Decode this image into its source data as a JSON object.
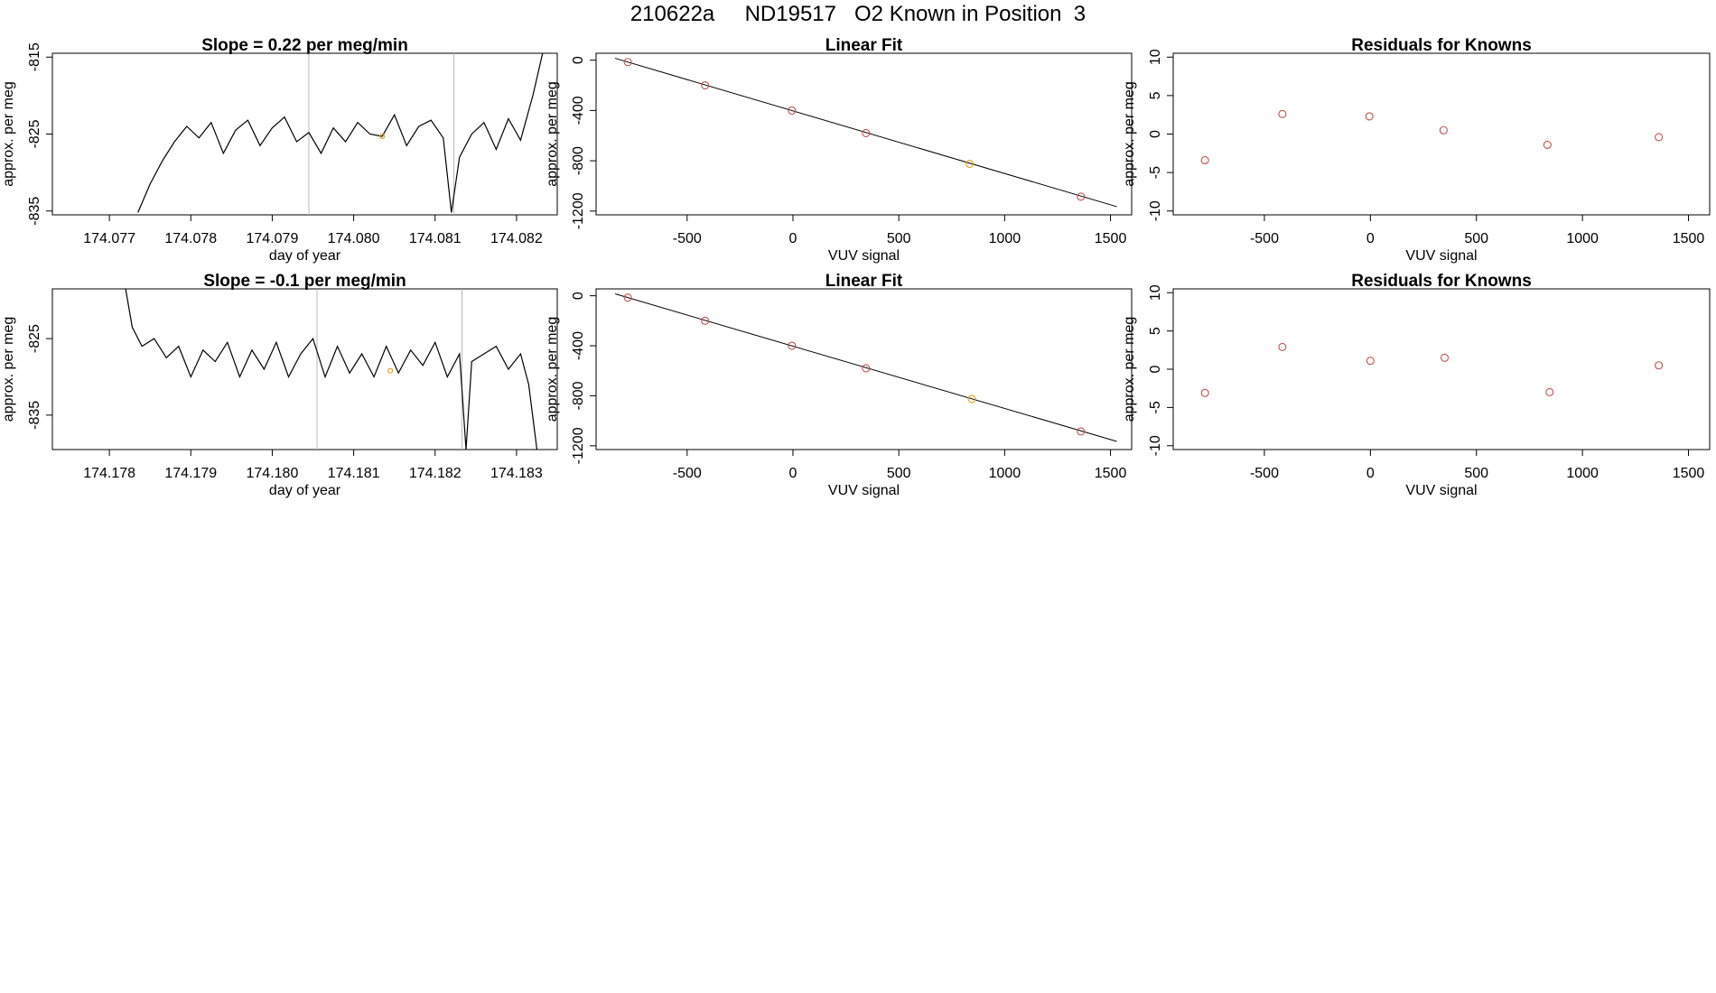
{
  "figure": {
    "title": "210622a     ND19517   O2 Known in Position  3"
  },
  "colors": {
    "line": "#000000",
    "known_point": "#c0504d",
    "highlight_point": "#e6a020",
    "vertical_rule": "#bbbbbb",
    "frame": "#000000"
  },
  "chart_data": [
    {
      "id": "time-series-1",
      "type": "line",
      "title": "Slope =  0.22  per meg/min",
      "xlabel": "day of year",
      "ylabel": "approx. per meg",
      "xlim": [
        174.0763,
        174.0825
      ],
      "ylim": [
        -835.5,
        -814.5
      ],
      "xticks": [
        174.077,
        174.078,
        174.079,
        174.08,
        174.081,
        174.082
      ],
      "xtick_labels": [
        "174.077",
        "174.078",
        "174.079",
        "174.080",
        "174.081",
        "174.082"
      ],
      "yticks": [
        -815,
        -825,
        -835
      ],
      "ytick_labels": [
        "-815",
        "-825",
        "-835"
      ],
      "vlines": [
        174.07945,
        174.08123
      ],
      "highlight": {
        "x": 174.08035,
        "y": -825.3
      },
      "x": [
        174.07735,
        174.0775,
        174.07765,
        174.0778,
        174.07795,
        174.0781,
        174.07825,
        174.0784,
        174.07855,
        174.0787,
        174.07885,
        174.079,
        174.07915,
        174.0793,
        174.07945,
        174.0796,
        174.07975,
        174.0799,
        174.08005,
        174.0802,
        174.08035,
        174.0805,
        174.08065,
        174.0808,
        174.08095,
        174.0811,
        174.0812,
        174.0813,
        174.08145,
        174.0816,
        174.08175,
        174.0819,
        174.08205,
        174.0822,
        174.08232
      ],
      "y": [
        -835.2,
        -831.5,
        -828.5,
        -826,
        -824,
        -825.5,
        -823.5,
        -827.5,
        -824.5,
        -823.2,
        -826.5,
        -824.2,
        -822.8,
        -826,
        -824.8,
        -827.5,
        -824.2,
        -826,
        -823.5,
        -825,
        -825.3,
        -822.5,
        -826.5,
        -824,
        -823.2,
        -825.5,
        -835.2,
        -828,
        -825,
        -823.5,
        -827,
        -823,
        -825.8,
        -820,
        -814.5
      ]
    },
    {
      "id": "linear-fit-1",
      "type": "scatter",
      "title": "Linear Fit",
      "xlabel": "VUV signal",
      "ylabel": "approx. per meg",
      "xlim": [
        -930,
        1600
      ],
      "ylim": [
        -1230,
        55
      ],
      "xticks": [
        -500,
        0,
        500,
        1000,
        1500
      ],
      "xtick_labels": [
        "-500",
        "0",
        "500",
        "1000",
        "1500"
      ],
      "yticks": [
        0,
        -400,
        -800,
        -1200
      ],
      "ytick_labels": [
        "0",
        "-400",
        "-800",
        "-1200"
      ],
      "fit_line": {
        "x": [
          -840,
          1530
        ],
        "y": [
          15,
          -1165
        ]
      },
      "x": [
        -780,
        -415,
        -5,
        345,
        835,
        1360
      ],
      "y": [
        -15,
        -200,
        -400,
        -580,
        -825,
        -1085
      ],
      "highlight_index": 4
    },
    {
      "id": "residuals-1",
      "type": "scatter",
      "title": "Residuals for Knowns",
      "xlabel": "VUV signal",
      "ylabel": "approx. per meg",
      "xlim": [
        -930,
        1600
      ],
      "ylim": [
        -10.5,
        10.5
      ],
      "xticks": [
        -500,
        0,
        500,
        1000,
        1500
      ],
      "xtick_labels": [
        "-500",
        "0",
        "500",
        "1000",
        "1500"
      ],
      "yticks": [
        10,
        5,
        0,
        -5,
        -10
      ],
      "ytick_labels": [
        "10",
        "5",
        "0",
        "-5",
        "-10"
      ],
      "x": [
        -780,
        -415,
        -5,
        345,
        835,
        1360
      ],
      "y": [
        -3.4,
        2.6,
        2.3,
        0.5,
        -1.4,
        -0.4
      ]
    },
    {
      "id": "time-series-2",
      "type": "line",
      "title": "Slope =  -0.1  per meg/min",
      "xlabel": "day of year",
      "ylabel": "approx. per meg",
      "xlim": [
        174.1773,
        174.1835
      ],
      "ylim": [
        -839.5,
        -818.5
      ],
      "xticks": [
        174.178,
        174.179,
        174.18,
        174.181,
        174.182,
        174.183
      ],
      "xtick_labels": [
        "174.178",
        "174.179",
        "174.180",
        "174.181",
        "174.182",
        "174.183"
      ],
      "yticks": [
        -825,
        -835
      ],
      "ytick_labels": [
        "-825",
        "-835"
      ],
      "vlines": [
        174.18055,
        174.18233
      ],
      "highlight": {
        "x": 174.18145,
        "y": -829.2
      },
      "x": [
        174.1782,
        174.17828,
        174.1784,
        174.17855,
        174.1787,
        174.17885,
        174.179,
        174.17915,
        174.1793,
        174.17945,
        174.1796,
        174.17975,
        174.1799,
        174.18005,
        174.1802,
        174.18035,
        174.1805,
        174.18065,
        174.1808,
        174.18095,
        174.1811,
        174.18125,
        174.1814,
        174.18155,
        174.1817,
        174.18185,
        174.182,
        174.18215,
        174.1823,
        174.18238,
        174.18245,
        174.1826,
        174.18275,
        174.1829,
        174.18305,
        174.18315,
        174.18325
      ],
      "y": [
        -818.5,
        -823.5,
        -826,
        -825,
        -827.5,
        -826,
        -830,
        -826.5,
        -828,
        -825.5,
        -830,
        -826.5,
        -829,
        -825.5,
        -830,
        -827,
        -825,
        -830,
        -826,
        -829.5,
        -827,
        -830,
        -826,
        -829.5,
        -826.5,
        -828.5,
        -825.5,
        -830,
        -827,
        -839.5,
        -828,
        -827,
        -826,
        -829,
        -827,
        -831,
        -839.5
      ]
    },
    {
      "id": "linear-fit-2",
      "type": "scatter",
      "title": "Linear Fit",
      "xlabel": "VUV signal",
      "ylabel": "approx. per meg",
      "xlim": [
        -930,
        1600
      ],
      "ylim": [
        -1230,
        55
      ],
      "xticks": [
        -500,
        0,
        500,
        1000,
        1500
      ],
      "xtick_labels": [
        "-500",
        "0",
        "500",
        "1000",
        "1500"
      ],
      "yticks": [
        0,
        -400,
        -800,
        -1200
      ],
      "ytick_labels": [
        "0",
        "-400",
        "-800",
        "-1200"
      ],
      "fit_line": {
        "x": [
          -840,
          1530
        ],
        "y": [
          15,
          -1165
        ]
      },
      "x": [
        -780,
        -415,
        -5,
        345,
        845,
        1360
      ],
      "y": [
        -15,
        -200,
        -400,
        -580,
        -825,
        -1085
      ],
      "highlight_index": 4
    },
    {
      "id": "residuals-2",
      "type": "scatter",
      "title": "Residuals for Knowns",
      "xlabel": "VUV signal",
      "ylabel": "approx. per meg",
      "xlim": [
        -930,
        1600
      ],
      "ylim": [
        -10.5,
        10.5
      ],
      "xticks": [
        -500,
        0,
        500,
        1000,
        1500
      ],
      "xtick_labels": [
        "-500",
        "0",
        "500",
        "1000",
        "1500"
      ],
      "yticks": [
        10,
        5,
        0,
        -5,
        -10
      ],
      "ytick_labels": [
        "10",
        "5",
        "0",
        "-5",
        "-10"
      ],
      "x": [
        -780,
        -415,
        0,
        350,
        845,
        1360
      ],
      "y": [
        -3.1,
        2.9,
        1.1,
        1.5,
        -3.0,
        0.5
      ]
    }
  ]
}
